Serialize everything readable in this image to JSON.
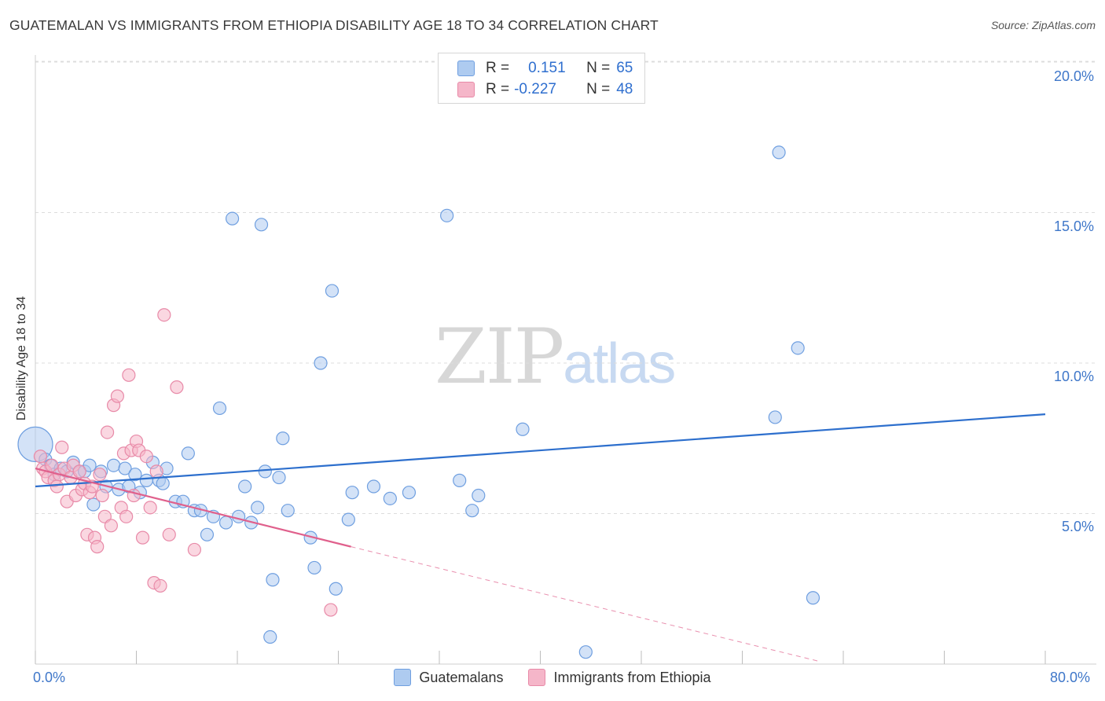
{
  "header": {
    "title": "GUATEMALAN VS IMMIGRANTS FROM ETHIOPIA DISABILITY AGE 18 TO 34 CORRELATION CHART",
    "source": "Source: ZipAtlas.com"
  },
  "legend": {
    "rows": [
      {
        "r_label": "R =",
        "r_value": "0.151",
        "n_label": "N =",
        "n_value": "65"
      },
      {
        "r_label": "R =",
        "r_value": "-0.227",
        "n_label": "N =",
        "n_value": "48"
      }
    ]
  },
  "watermark": {
    "part1": "ZIP",
    "part2": "atlas"
  },
  "colors": {
    "blue_fill": "#aecbf0",
    "blue_stroke": "#6f9fe0",
    "blue_line": "#2d6fcd",
    "pink_fill": "#f5b6c9",
    "pink_stroke": "#e88aa8",
    "pink_line": "#e0608c",
    "axis_text": "#3f77c9",
    "grid": "#dcdcdc"
  },
  "chart_data": {
    "type": "scatter",
    "title": "GUATEMALAN VS IMMIGRANTS FROM ETHIOPIA DISABILITY AGE 18 TO 34 CORRELATION CHART",
    "xlabel": "",
    "ylabel": "Disability Age 18 to 34",
    "xlim": [
      0,
      80
    ],
    "ylim": [
      0,
      20
    ],
    "x_tick_labels": [
      "0.0%",
      "80.0%"
    ],
    "y_ticks": [
      5,
      10,
      15,
      20
    ],
    "y_tick_labels": [
      "5.0%",
      "10.0%",
      "15.0%",
      "20.0%"
    ],
    "series": [
      {
        "name": "Guatemalans",
        "r": 0.151,
        "n": 65,
        "trend": {
          "x0": 0,
          "y0": 5.9,
          "x1": 80,
          "y1": 8.3
        },
        "points": [
          [
            0.5,
            7.3
          ],
          [
            0.8,
            6.8
          ],
          [
            1.2,
            6.6
          ],
          [
            1.5,
            6.3
          ],
          [
            2.0,
            6.5
          ],
          [
            2.5,
            6.4
          ],
          [
            3.0,
            6.7
          ],
          [
            3.5,
            6.4
          ],
          [
            3.9,
            6.4
          ],
          [
            4.3,
            6.6
          ],
          [
            4.6,
            5.3
          ],
          [
            5.2,
            6.4
          ],
          [
            5.6,
            5.9
          ],
          [
            6.2,
            6.6
          ],
          [
            6.6,
            5.8
          ],
          [
            7.1,
            6.5
          ],
          [
            7.4,
            5.9
          ],
          [
            7.9,
            6.3
          ],
          [
            8.3,
            5.7
          ],
          [
            8.8,
            6.1
          ],
          [
            9.3,
            6.7
          ],
          [
            9.8,
            6.1
          ],
          [
            10.1,
            6.0
          ],
          [
            10.4,
            6.5
          ],
          [
            11.1,
            5.4
          ],
          [
            11.7,
            5.4
          ],
          [
            12.1,
            7.0
          ],
          [
            12.6,
            5.1
          ],
          [
            13.1,
            5.1
          ],
          [
            13.6,
            4.3
          ],
          [
            14.1,
            4.9
          ],
          [
            14.6,
            8.5
          ],
          [
            15.1,
            4.7
          ],
          [
            15.6,
            14.8
          ],
          [
            16.1,
            4.9
          ],
          [
            16.6,
            5.9
          ],
          [
            17.1,
            4.7
          ],
          [
            17.6,
            5.2
          ],
          [
            17.9,
            14.6
          ],
          [
            18.2,
            6.4
          ],
          [
            18.6,
            0.9
          ],
          [
            18.8,
            2.8
          ],
          [
            19.3,
            6.2
          ],
          [
            19.6,
            7.5
          ],
          [
            20.0,
            5.1
          ],
          [
            21.8,
            4.2
          ],
          [
            22.1,
            3.2
          ],
          [
            22.6,
            10.0
          ],
          [
            23.5,
            12.4
          ],
          [
            23.8,
            2.5
          ],
          [
            24.8,
            4.8
          ],
          [
            25.1,
            5.7
          ],
          [
            26.8,
            5.9
          ],
          [
            28.1,
            5.5
          ],
          [
            29.6,
            5.7
          ],
          [
            32.6,
            14.9
          ],
          [
            33.6,
            6.1
          ],
          [
            34.6,
            5.1
          ],
          [
            35.1,
            5.6
          ],
          [
            38.6,
            7.8
          ],
          [
            43.6,
            0.4
          ],
          [
            58.6,
            8.2
          ],
          [
            58.9,
            17.0
          ],
          [
            60.4,
            10.5
          ],
          [
            61.6,
            2.2
          ]
        ]
      },
      {
        "name": "Immigrants from Ethiopia",
        "r": -0.227,
        "n": 48,
        "trend": {
          "x0": 0,
          "y0": 6.5,
          "x1": 25,
          "y1": 3.9
        },
        "trend_ext": {
          "x0": 25,
          "y0": 3.9,
          "x1": 62,
          "y1": 0.1
        },
        "points": [
          [
            0.4,
            6.9
          ],
          [
            0.6,
            6.5
          ],
          [
            0.8,
            6.4
          ],
          [
            1.0,
            6.2
          ],
          [
            1.3,
            6.6
          ],
          [
            1.5,
            6.1
          ],
          [
            1.7,
            5.9
          ],
          [
            1.9,
            6.3
          ],
          [
            2.1,
            7.2
          ],
          [
            2.3,
            6.5
          ],
          [
            2.5,
            5.4
          ],
          [
            2.8,
            6.2
          ],
          [
            3.0,
            6.6
          ],
          [
            3.2,
            5.6
          ],
          [
            3.5,
            6.4
          ],
          [
            3.7,
            5.8
          ],
          [
            3.9,
            6.0
          ],
          [
            4.1,
            4.3
          ],
          [
            4.3,
            5.7
          ],
          [
            4.5,
            5.9
          ],
          [
            4.7,
            4.2
          ],
          [
            4.9,
            3.9
          ],
          [
            5.1,
            6.3
          ],
          [
            5.3,
            5.6
          ],
          [
            5.5,
            4.9
          ],
          [
            5.7,
            7.7
          ],
          [
            6.0,
            4.6
          ],
          [
            6.2,
            8.6
          ],
          [
            6.5,
            8.9
          ],
          [
            6.8,
            5.2
          ],
          [
            7.0,
            7.0
          ],
          [
            7.2,
            4.9
          ],
          [
            7.4,
            9.6
          ],
          [
            7.6,
            7.1
          ],
          [
            7.8,
            5.6
          ],
          [
            8.0,
            7.4
          ],
          [
            8.2,
            7.1
          ],
          [
            8.5,
            4.2
          ],
          [
            8.8,
            6.9
          ],
          [
            9.1,
            5.2
          ],
          [
            9.4,
            2.7
          ],
          [
            9.6,
            6.4
          ],
          [
            9.9,
            2.6
          ],
          [
            10.2,
            11.6
          ],
          [
            10.6,
            4.3
          ],
          [
            11.2,
            9.2
          ],
          [
            12.6,
            3.8
          ],
          [
            23.4,
            1.8
          ]
        ]
      }
    ]
  }
}
